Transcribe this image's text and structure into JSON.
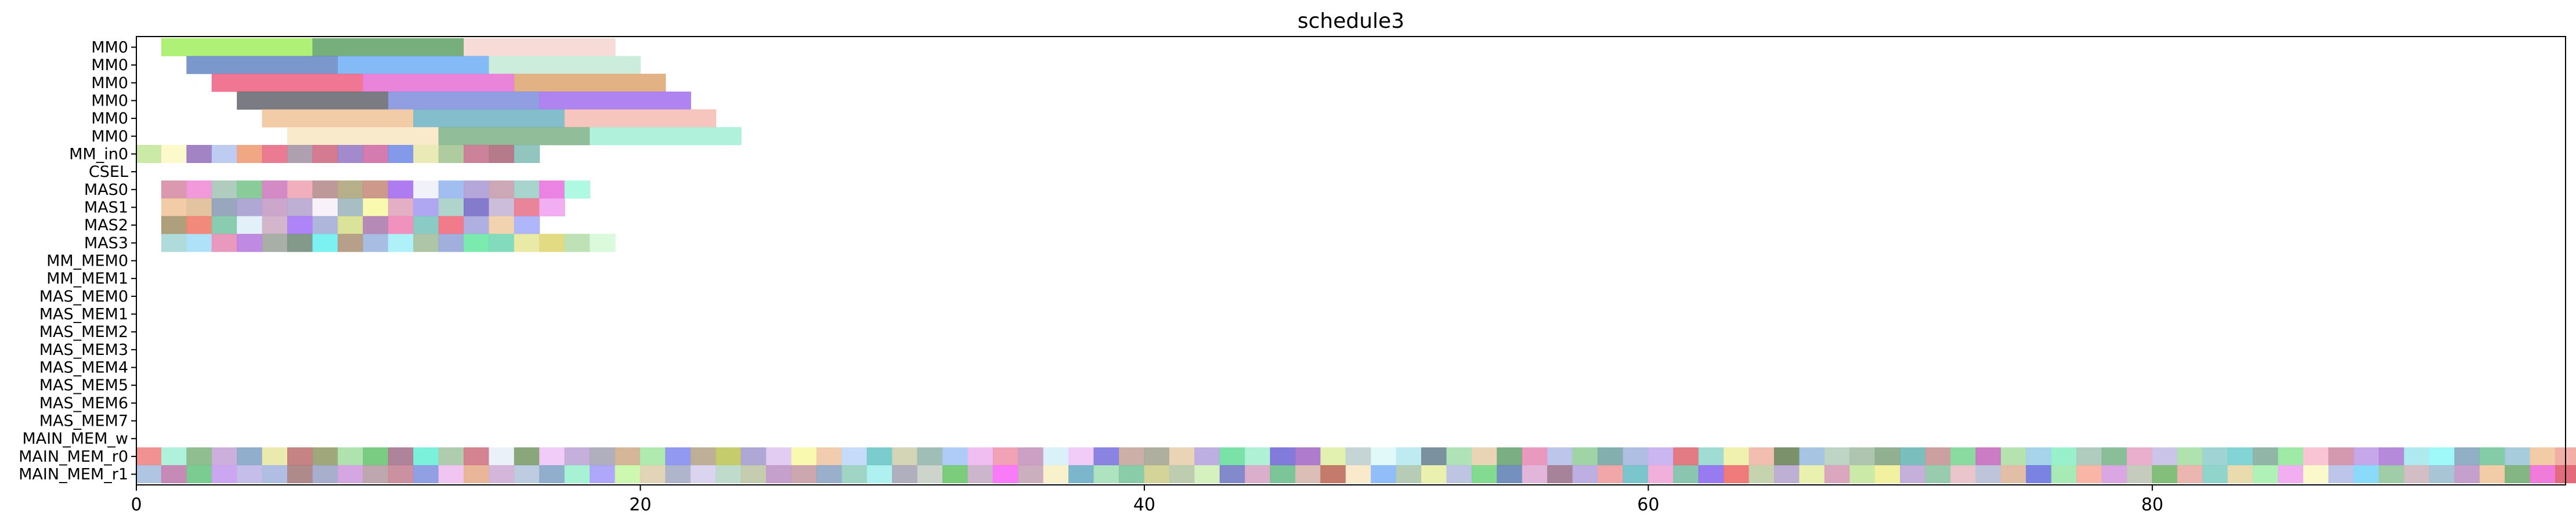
{
  "chart_data": {
    "type": "gantt",
    "title": "schedule3",
    "xlabel": "",
    "ylabel": "",
    "xlim": [
      0,
      96.4
    ],
    "x_ticks": [
      0,
      20,
      40,
      60,
      80
    ],
    "grid": false,
    "rows": [
      "MM0",
      "MM0",
      "MM0",
      "MM0",
      "MM0",
      "MM0",
      "MM_in0",
      "CSEL",
      "MAS0",
      "MAS1",
      "MAS2",
      "MAS3",
      "MM_MEM0",
      "MM_MEM1",
      "MAS_MEM0",
      "MAS_MEM1",
      "MAS_MEM2",
      "MAS_MEM3",
      "MAS_MEM4",
      "MAS_MEM5",
      "MAS_MEM6",
      "MAS_MEM7",
      "MAIN_MEM_w",
      "MAIN_MEM_r0",
      "MAIN_MEM_r1"
    ],
    "tasks": {
      "row0": [
        [
          1,
          7,
          "#a8f06a"
        ],
        [
          7,
          13,
          "#6aa870"
        ],
        [
          13,
          19,
          "#f5d8d4"
        ]
      ],
      "row1": [
        [
          2,
          8,
          "#6f8fc8"
        ],
        [
          8,
          14,
          "#7ab4f5"
        ],
        [
          14,
          20,
          "#c8ecd8"
        ]
      ],
      "row2": [
        [
          3,
          9,
          "#f06a8a"
        ],
        [
          9,
          15,
          "#e87ad8"
        ],
        [
          15,
          21,
          "#e0aa7a"
        ]
      ],
      "row3": [
        [
          4,
          10,
          "#707078"
        ],
        [
          10,
          16,
          "#8896e0"
        ],
        [
          16,
          22,
          "#a87af0"
        ]
      ],
      "row4": [
        [
          5,
          11,
          "#f0c8a0"
        ],
        [
          11,
          17,
          "#7ab8c8"
        ],
        [
          17,
          23,
          "#f5c0b8"
        ]
      ],
      "row5": [
        [
          6,
          12,
          "#fae8c8"
        ],
        [
          12,
          18,
          "#88b890"
        ],
        [
          18,
          24,
          "#a8f0d8"
        ]
      ],
      "row6": [
        "#c8e8a0",
        "#fcf8c8",
        "#9a7ac0",
        "#b8c8f0",
        "#f0a07a",
        "#e8708a",
        "#a898a8",
        "#d07088",
        "#9a80c8",
        "#d070a8",
        "#7a90e8",
        "#e8e8b0",
        "#a8c898",
        "#c87890",
        "#b07080",
        "#88c0b8"
      ],
      "row8": [
        "#d890a8",
        "#f090d8",
        "#a8c8b8",
        "#80c890",
        "#d080c0",
        "#f0a8b8",
        "#b89090",
        "#b0a880",
        "#c89080",
        "#a870f0",
        "#f0f0f8",
        "#9ab8f0",
        "#b0a0d8",
        "#c8a0b0",
        "#a0d0c8",
        "#e878e0",
        "#a8f8e0"
      ],
      "row9": [
        "#f0c8a0",
        "#e0c098",
        "#90a0b8",
        "#a8a0d0",
        "#c8a0c8",
        "#b8a8d0",
        "#f8f0f8",
        "#a0b8c0",
        "#f8f8a8",
        "#e0a8c0",
        "#a8a0f0",
        "#a8d0c8",
        "#7a70c8",
        "#c8b8d8",
        "#e87a90",
        "#f0a8f0"
      ],
      "row10": [
        "#a89870",
        "#f08070",
        "#80c8a8",
        "#e0f0f8",
        "#d0b0c8",
        "#a87af8",
        "#a8b0d8",
        "#d8e090",
        "#b080b0",
        "#f088b8",
        "#80c8c0",
        "#f07080",
        "#a8a8e0",
        "#f0d0a8",
        "#a8b0f8"
      ],
      "row11": [
        "#a8d8d8",
        "#a8e0f8",
        "#e890b8",
        "#b880e0",
        "#a0a8a0",
        "#789080",
        "#70f0f0",
        "#b09880",
        "#a0b8e0",
        "#a8f0f8",
        "#a8c0a0",
        "#98a8d8",
        "#70e8a8",
        "#78d8b8",
        "#e8e8a0",
        "#e0d878",
        "#b8e0b0",
        "#d8f8d8"
      ],
      "row23": [
        "#f08888",
        "#a8f0d8",
        "#88b888",
        "#c8a8d8",
        "#88a8c8",
        "#e8e8a8",
        "#c07878",
        "#98a070",
        "#a8e0a8",
        "#70c878",
        "#a87890",
        "#70f0d8",
        "#a8c8a8",
        "#d07888",
        "#e8f0f8",
        "#80a070",
        "#f0c8f8",
        "#c0a8d8",
        "#a8a8b8",
        "#d0b090",
        "#a8e8a8",
        "#8890f0",
        "#b8a890",
        "#c0c860",
        "#a8a0d0",
        "#e0c8f0",
        "#f8f8a8",
        "#f0c8a8",
        "#c0d8f8",
        "#70c8c8",
        "#d0d0b0",
        "#98b8b0",
        "#a8c8f8",
        "#f0b8f0",
        "#f09ab0",
        "#c898c0",
        "#d8f0f8",
        "#f0c8f8",
        "#8078e0",
        "#c8a8a0",
        "#a8a898",
        "#e8d0b0",
        "#b8a8e0",
        "#70e0a0",
        "#a8f0d0",
        "#7870d8",
        "#a870c8",
        "#e0f0a8",
        "#c0d0d0",
        "#e0f8f8",
        "#b8e8f0",
        "#708898",
        "#a8e0b0",
        "#e8d0b0",
        "#70a878",
        "#e890b8",
        "#b8c0e8",
        "#98d0a0",
        "#78a8a8",
        "#a8b8e0",
        "#c8b0f0",
        "#e07078",
        "#98d8d0",
        "#f0f0a8",
        "#f0b8a8",
        "#708860",
        "#a0c0e0",
        "#b8d0c0",
        "#a8c0a8",
        "#88a888",
        "#70b8b8",
        "#c89898",
        "#80d898",
        "#c870c0",
        "#b0e0a8",
        "#a0d0e8",
        "#90f0c8",
        "#a8c8b8",
        "#80b890",
        "#e8a8c8",
        "#c8c0e8",
        "#a8e0a8",
        "#98d0d0",
        "#78d0d0",
        "#88b0a0",
        "#98e8a0",
        "#f8c0d0",
        "#d090a8",
        "#c0a0e8",
        "#b080d8",
        "#a8e8f0",
        "#98f8f8",
        "#88a8c0",
        "#78c8a0",
        "#a0c8d8",
        "#f0c8a0",
        "#f0a8a0"
      ],
      "row24": [
        "#a8c0e0",
        "#c080b0",
        "#70c888",
        "#c8a0f0",
        "#c0b8e8",
        "#a8b8e0",
        "#a88080",
        "#a0a8c8",
        "#d0a0e0",
        "#b8a0a8",
        "#c88898",
        "#8898e0",
        "#f0c0f0",
        "#e8b090",
        "#d0b0d8",
        "#b8c8e0",
        "#88a8c8",
        "#a0f0d0",
        "#a8a0f8",
        "#c8f8a8",
        "#e0d0b0",
        "#a8b0c8",
        "#d8d0f0",
        "#b8d8c8",
        "#c0c8a8",
        "#c098c8",
        "#c8a0a8",
        "#90a8c8",
        "#98d0c0",
        "#a8f0f0",
        "#a8a8b8",
        "#c8d0c8",
        "#70c870",
        "#c8b0c8",
        "#f870f8",
        "#c8a8b8",
        "#f8f0c8",
        "#70b0c8",
        "#a8e0b8",
        "#80c8a0",
        "#d0d090",
        "#b8c8a8",
        "#d0f0b8",
        "#7880c8",
        "#d8a8c8",
        "#70c090",
        "#d8b8b0",
        "#c07060",
        "#f8e8c8",
        "#88b8f8",
        "#b0c8b0",
        "#e8f0a8",
        "#b8c0e0",
        "#78d888",
        "#6888b8",
        "#e0b0d8",
        "#a07890",
        "#b8a8e0",
        "#f0a0a0",
        "#70c0c8",
        "#f0a8d8",
        "#80c0a8",
        "#9070f0",
        "#f07070",
        "#c0d0a8",
        "#b8a8d0",
        "#e8f0a8",
        "#d8a0b8",
        "#c8e8a0",
        "#f0f098",
        "#c0a8d8",
        "#90c8a8",
        "#e8c0c8",
        "#b8c0d8",
        "#e0b8a0",
        "#7078e0",
        "#a0e8b0",
        "#f8b0a0",
        "#d8a0e0",
        "#c0c8b8",
        "#78b870",
        "#e8b0a8",
        "#88d0c8",
        "#e8d8a8",
        "#a8f0b0",
        "#f0a8f0",
        "#f8f8c8",
        "#b8c0e8",
        "#80d8f8",
        "#98c8a0",
        "#d0b8c0",
        "#a0c0d0",
        "#c098c8",
        "#f0c8a0",
        "#78b078",
        "#f070d8",
        "#e06070"
      ]
    }
  }
}
